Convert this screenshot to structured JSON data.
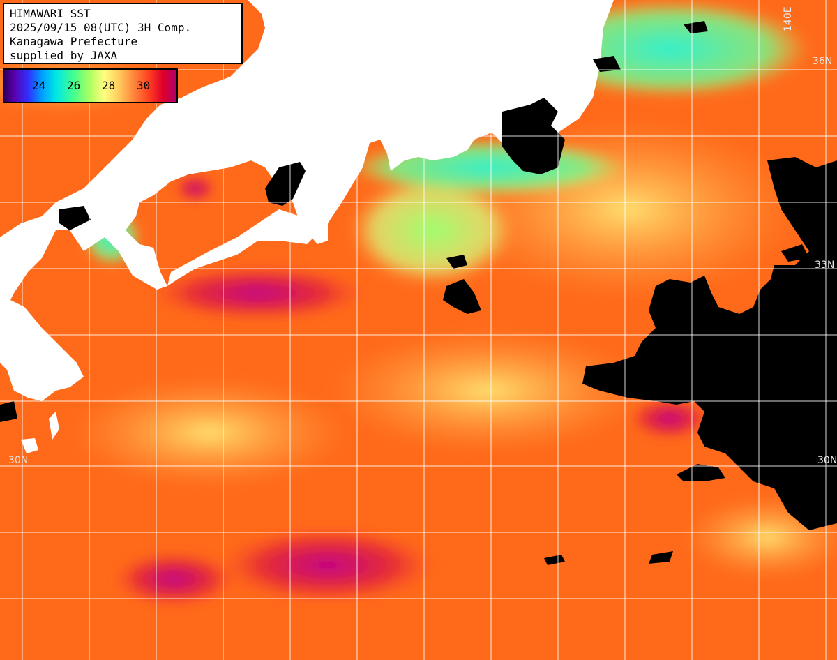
{
  "header": {
    "line1": "HIMAWARI SST",
    "line2": "2025/09/15 08(UTC) 3H Comp.",
    "line3": "Kanagawa Prefecture",
    "line4": "supplied by JAXA"
  },
  "legend": {
    "ticks": [
      "24",
      "26",
      "28",
      "30"
    ]
  },
  "grid_labels": {
    "lat_36": "36N",
    "lat_33": "33N",
    "lat_30_left": "30N",
    "lat_30_right": "30N",
    "lon_140": "140E"
  },
  "colors": {
    "land": "#ffffff",
    "cloud": "#000000",
    "grid": "#ffffff",
    "warm": "#ff6a1a",
    "very_warm": "#c0006a",
    "cool": "#40ff90"
  }
}
